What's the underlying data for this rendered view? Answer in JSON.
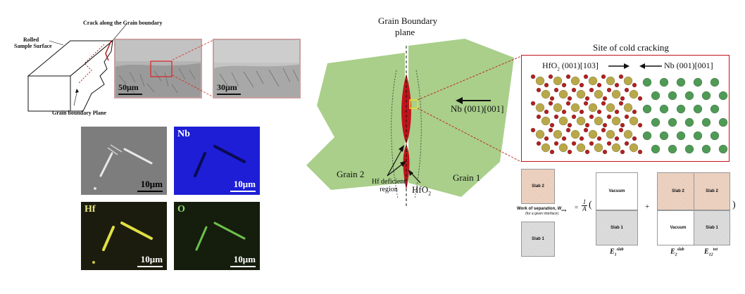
{
  "sample_schematic": {
    "crack_label": "Crack along the Grain boundary",
    "surface_label_line1": "Rolled",
    "surface_label_line2": "Sample Surface",
    "plane_label": "Grain boundary Plane"
  },
  "sem_images": [
    {
      "scale": "50μm"
    },
    {
      "scale": "30μm"
    }
  ],
  "element_maps": [
    {
      "element": "",
      "scale": "10μm",
      "tint": "#7c7c7c"
    },
    {
      "element": "Nb",
      "scale": "10μm",
      "tint": "#1a1ad8"
    },
    {
      "element": "Hf",
      "scale": "10μm",
      "tint": "#1a1a0c"
    },
    {
      "element": "O",
      "scale": "10μm",
      "tint": "#141c0c"
    }
  ],
  "grain_diagram": {
    "title_line1": "Grain Boundary",
    "title_line2": "plane",
    "grain2": "Grain 2",
    "grain1": "Grain 1",
    "hf_deficient_line1": "Hf deficient",
    "hf_deficient_line2": "region",
    "hfo2": "HfO",
    "hfo2_sub": "2",
    "nb_direction": "Nb (001)[001]",
    "grain_color": "#a9cf8a",
    "oxide_color": "#c0141b"
  },
  "cold_cracking": {
    "title": "Site of cold cracking",
    "left_phase": "HfO",
    "left_phase_sub": "2",
    "left_phase_orient": " (001)[103]",
    "right_phase": "Nb (001)[001]",
    "hf_atom_color": "#b8a84a",
    "o_atom_color": "#b02020",
    "nb_atom_color": "#4f9a55"
  },
  "work_of_separation": {
    "label_main": "Work of separation, ",
    "label_symbol": "W",
    "label_sub": "sep",
    "label_note": "(for a given interface)",
    "prefactor_num": "1",
    "prefactor_den": "A",
    "slab1": "Slab 1",
    "slab2": "Slab 2",
    "vacuum": "Vacuum",
    "plus": "+",
    "minus": "−",
    "open_paren": "(",
    "close_paren": ")",
    "equals": "=",
    "e1": "E",
    "e1_sub": "1",
    "e1_sup": "slab",
    "e2": "E",
    "e2_sub": "2",
    "e2_sup": "slab",
    "e12": "E",
    "e12_sub": "12",
    "e12_sup": "tot"
  }
}
